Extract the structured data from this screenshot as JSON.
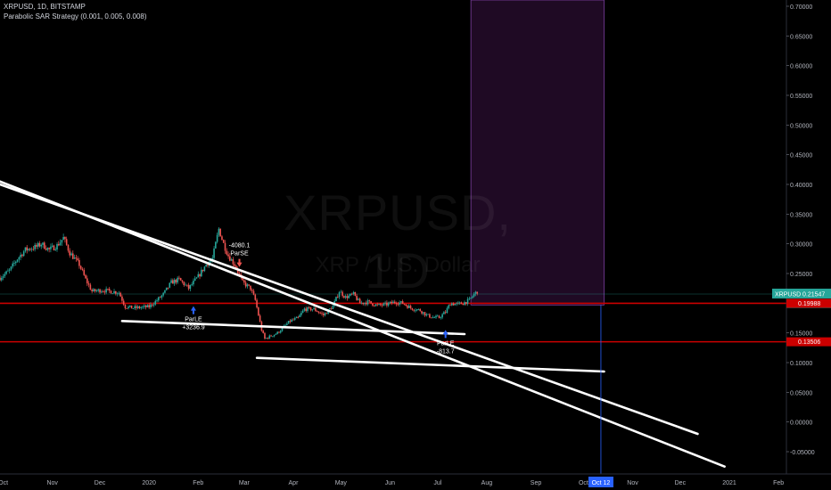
{
  "header": {
    "symbol_line": "XRPUSD, 1D, BITSTAMP",
    "indicator_line": "Parabolic SAR Strategy (0.001, 0.005, 0.008)"
  },
  "watermark": {
    "symbol": "XRPUSD, 1D",
    "description": "XRP / U.S. Dollar"
  },
  "colors": {
    "background": "#000000",
    "up": "#26a69a",
    "down": "#ef5350",
    "trendline": "#ffffff",
    "support": "#cc0000",
    "projection_fill": "#1f0a24",
    "projection_border": "#7b3fa0",
    "axis_text": "#b2b5be",
    "price_label": "#26a69a",
    "cursor": "#2962ff"
  },
  "chart_data": {
    "type": "candlestick",
    "title": "XRPUSD, 1D, BITSTAMP",
    "x_tick_labels": [
      "Oct",
      "Nov",
      "Dec",
      "2020",
      "Feb",
      "Mar",
      "Apr",
      "May",
      "Jun",
      "Jul",
      "Aug",
      "Sep",
      "Oct",
      "Nov",
      "Dec",
      "2021",
      "Feb"
    ],
    "x_tick_dates": [
      "2019-10-01",
      "2019-11-01",
      "2019-12-01",
      "2020-01-01",
      "2020-02-01",
      "2020-03-01",
      "2020-04-01",
      "2020-05-01",
      "2020-06-01",
      "2020-07-01",
      "2020-08-01",
      "2020-09-01",
      "2020-10-01",
      "2020-11-01",
      "2020-12-01",
      "2021-01-01",
      "2021-02-01"
    ],
    "x_range": [
      "2019-09-29",
      "2021-02-06"
    ],
    "y_tick_labels": [
      "0.70000",
      "0.65000",
      "0.60000",
      "0.55000",
      "0.50000",
      "0.45000",
      "0.40000",
      "0.35000",
      "0.30000",
      "0.25000",
      "0.20000",
      "0.15000",
      "0.10000",
      "0.05000",
      "0.00000",
      "-0.05000"
    ],
    "y_ticks": [
      0.7,
      0.65,
      0.6,
      0.55,
      0.5,
      0.45,
      0.4,
      0.35,
      0.3,
      0.25,
      0.2,
      0.15,
      0.1,
      0.05,
      0.0,
      -0.05
    ],
    "ylim": [
      -0.0875,
      0.7105
    ],
    "grid": false,
    "price_path": [
      [
        "2019-09-29",
        0.243
      ],
      [
        "2019-10-05",
        0.255
      ],
      [
        "2019-10-10",
        0.275
      ],
      [
        "2019-10-15",
        0.29
      ],
      [
        "2019-10-22",
        0.295
      ],
      [
        "2019-10-25",
        0.3
      ],
      [
        "2019-10-30",
        0.29
      ],
      [
        "2019-11-04",
        0.297
      ],
      [
        "2019-11-08",
        0.31
      ],
      [
        "2019-11-12",
        0.285
      ],
      [
        "2019-11-18",
        0.265
      ],
      [
        "2019-11-22",
        0.24
      ],
      [
        "2019-11-26",
        0.22
      ],
      [
        "2019-12-02",
        0.222
      ],
      [
        "2019-12-08",
        0.22
      ],
      [
        "2019-12-13",
        0.218
      ],
      [
        "2019-12-17",
        0.194
      ],
      [
        "2019-12-22",
        0.192
      ],
      [
        "2019-12-28",
        0.193
      ],
      [
        "2020-01-01",
        0.194
      ],
      [
        "2020-01-06",
        0.205
      ],
      [
        "2020-01-10",
        0.215
      ],
      [
        "2020-01-15",
        0.235
      ],
      [
        "2020-01-20",
        0.24
      ],
      [
        "2020-01-26",
        0.225
      ],
      [
        "2020-02-01",
        0.245
      ],
      [
        "2020-02-06",
        0.265
      ],
      [
        "2020-02-10",
        0.275
      ],
      [
        "2020-02-14",
        0.325
      ],
      [
        "2020-02-17",
        0.3
      ],
      [
        "2020-02-20",
        0.28
      ],
      [
        "2020-02-24",
        0.265
      ],
      [
        "2020-02-29",
        0.235
      ],
      [
        "2020-03-05",
        0.225
      ],
      [
        "2020-03-08",
        0.205
      ],
      [
        "2020-03-12",
        0.155
      ],
      [
        "2020-03-14",
        0.14
      ],
      [
        "2020-03-18",
        0.145
      ],
      [
        "2020-03-22",
        0.15
      ],
      [
        "2020-03-26",
        0.16
      ],
      [
        "2020-03-30",
        0.17
      ],
      [
        "2020-04-04",
        0.175
      ],
      [
        "2020-04-08",
        0.19
      ],
      [
        "2020-04-14",
        0.19
      ],
      [
        "2020-04-20",
        0.18
      ],
      [
        "2020-04-26",
        0.195
      ],
      [
        "2020-04-30",
        0.22
      ],
      [
        "2020-05-04",
        0.21
      ],
      [
        "2020-05-09",
        0.215
      ],
      [
        "2020-05-13",
        0.2
      ],
      [
        "2020-05-18",
        0.202
      ],
      [
        "2020-05-24",
        0.196
      ],
      [
        "2020-05-30",
        0.198
      ],
      [
        "2020-06-04",
        0.202
      ],
      [
        "2020-06-09",
        0.2
      ],
      [
        "2020-06-14",
        0.192
      ],
      [
        "2020-06-20",
        0.188
      ],
      [
        "2020-06-24",
        0.18
      ],
      [
        "2020-06-28",
        0.176
      ],
      [
        "2020-07-02",
        0.176
      ],
      [
        "2020-07-06",
        0.185
      ],
      [
        "2020-07-09",
        0.2
      ],
      [
        "2020-07-13",
        0.198
      ],
      [
        "2020-07-17",
        0.2
      ],
      [
        "2020-07-21",
        0.205
      ],
      [
        "2020-07-24",
        0.215
      ],
      [
        "2020-07-26",
        0.22
      ]
    ],
    "last_price_label": "XRPUSD",
    "last_price": "0.21547",
    "countdown": "03:31:38",
    "horizontal_levels": [
      {
        "value": 0.19988,
        "label": "0.19988"
      },
      {
        "value": 0.13506,
        "label": "0.13506"
      }
    ],
    "projection_box": {
      "x_from": "2020-07-22",
      "x_to": "2020-10-14",
      "y_from": 0.197,
      "y_to": 0.7105
    },
    "trendlines": [
      {
        "from": [
          "2019-09-29",
          0.405
        ],
        "to": [
          "2020-12-29",
          -0.075
        ]
      },
      {
        "from": [
          "2019-09-29",
          0.4
        ],
        "to": [
          "2020-12-12",
          -0.02
        ]
      },
      {
        "from": [
          "2019-12-15",
          0.17
        ],
        "to": [
          "2020-07-18",
          0.148
        ]
      },
      {
        "from": [
          "2020-03-09",
          0.108
        ],
        "to": [
          "2020-10-14",
          0.085
        ]
      }
    ],
    "annotations": [
      {
        "text": "ParLE",
        "value": "+3236.9",
        "date": "2020-01-29",
        "y": 0.195,
        "placement": "below"
      },
      {
        "text": "ParSE",
        "value": "-4080.1",
        "date": "2020-02-27",
        "y": 0.27,
        "placement": "above"
      },
      {
        "text": "ParLE",
        "value": "-813.7",
        "date": "2020-07-06",
        "y": 0.155,
        "placement": "below"
      }
    ],
    "cursor": {
      "label": "Oct 12",
      "date": "2020-10-12"
    }
  }
}
